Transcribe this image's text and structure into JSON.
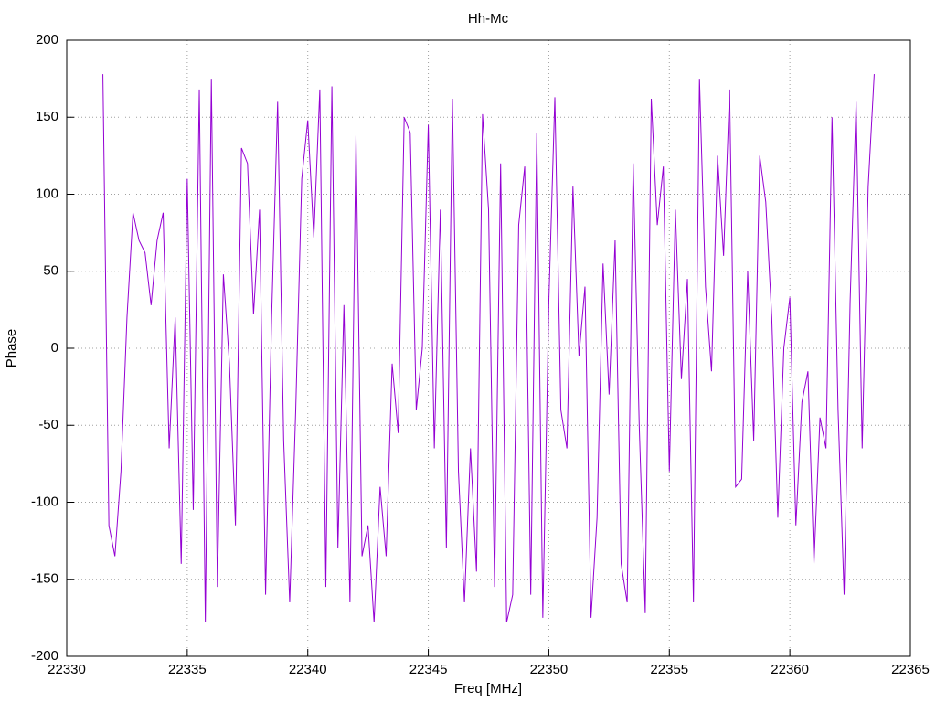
{
  "chart_data": {
    "type": "line",
    "title": "Hh-Mc",
    "x_label": "Freq [MHz]",
    "y_label": "Phase",
    "x": [
      22331.5,
      22331.75,
      22332,
      22332.25,
      22332.5,
      22332.75,
      22333,
      22333.25,
      22333.5,
      22333.75,
      22334,
      22334.25,
      22334.5,
      22334.75,
      22335,
      22335.25,
      22335.5,
      22335.75,
      22336,
      22336.25,
      22336.5,
      22336.75,
      22337,
      22337.25,
      22337.5,
      22337.75,
      22338,
      22338.25,
      22338.5,
      22338.75,
      22339,
      22339.25,
      22339.5,
      22339.75,
      22340,
      22340.25,
      22340.5,
      22340.75,
      22341,
      22341.25,
      22341.5,
      22341.75,
      22342,
      22342.25,
      22342.5,
      22342.75,
      22343,
      22343.25,
      22343.5,
      22343.75,
      22344,
      22344.25,
      22344.5,
      22344.75,
      22345,
      22345.25,
      22345.5,
      22345.75,
      22346,
      22346.25,
      22346.5,
      22346.75,
      22347,
      22347.25,
      22347.5,
      22347.75,
      22348,
      22348.25,
      22348.5,
      22348.75,
      22349,
      22349.25,
      22349.5,
      22349.75,
      22350,
      22350.25,
      22350.5,
      22350.75,
      22351,
      22351.25,
      22351.5,
      22351.75,
      22352,
      22352.25,
      22352.5,
      22352.75,
      22353,
      22353.25,
      22353.5,
      22353.75,
      22354,
      22354.25,
      22354.5,
      22354.75,
      22355,
      22355.25,
      22355.5,
      22355.75,
      22356,
      22356.25,
      22356.5,
      22356.75,
      22357,
      22357.25,
      22357.5,
      22357.75,
      22358,
      22358.25,
      22358.5,
      22358.75,
      22359,
      22359.25,
      22359.5,
      22359.75,
      22360,
      22360.25,
      22360.5,
      22360.75,
      22361,
      22361.25,
      22361.5,
      22361.75,
      22362,
      22362.25,
      22362.5,
      22362.75,
      22363,
      22363.25,
      22363.5
    ],
    "series": [
      {
        "color": "#9400d3",
        "values": [
          178,
          -115,
          -135,
          -80,
          20,
          88,
          70,
          62,
          28,
          70,
          88,
          -65,
          20,
          -140,
          110,
          -105,
          168,
          -178,
          175,
          -155,
          48,
          -10,
          -115,
          130,
          120,
          22,
          90,
          -160,
          20,
          160,
          -60,
          -165,
          -40,
          110,
          148,
          72,
          168,
          -155,
          170,
          -130,
          28,
          -165,
          138,
          -135,
          -115,
          -178,
          -90,
          -135,
          -10,
          -55,
          150,
          140,
          -40,
          0,
          145,
          -65,
          90,
          -130,
          162,
          -80,
          -165,
          -65,
          -145,
          152,
          90,
          -155,
          120,
          -178,
          -160,
          80,
          118,
          -160,
          140,
          -175,
          30,
          163,
          -40,
          -65,
          105,
          -5,
          40,
          -175,
          -110,
          55,
          -30,
          70,
          -140,
          -165,
          120,
          -50,
          -172,
          162,
          80,
          118,
          -80,
          90,
          -20,
          45,
          -165,
          175,
          40,
          -15,
          125,
          60,
          168,
          -90,
          -85,
          50,
          -60,
          125,
          95,
          20,
          -110,
          0,
          33,
          -115,
          -35,
          -15,
          -140,
          -45,
          -65,
          150,
          -40,
          -160,
          30,
          160,
          -65,
          105,
          178
        ]
      }
    ],
    "xlim": [
      22330,
      22365
    ],
    "xticks": [
      22330,
      22335,
      22340,
      22345,
      22350,
      22355,
      22360,
      22365
    ],
    "ylim": [
      -200,
      200
    ],
    "yticks": [
      -200,
      -150,
      -100,
      -50,
      0,
      50,
      100,
      150,
      200
    ],
    "grid": true
  }
}
